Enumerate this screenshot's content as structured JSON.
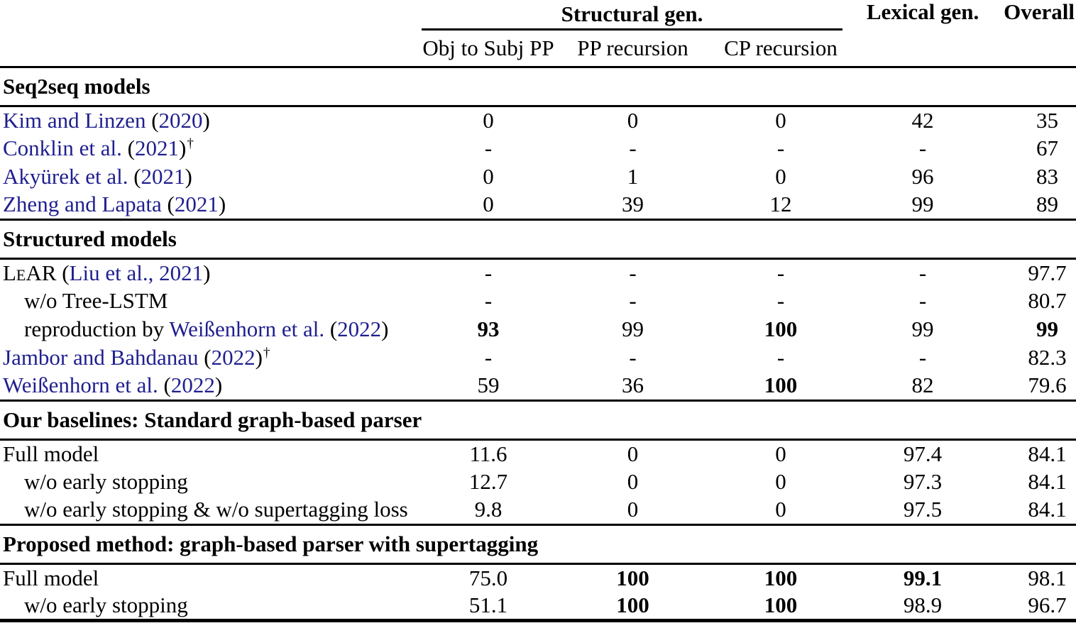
{
  "page": {
    "background": "#ffffff",
    "text_color": "#000000"
  },
  "table": {
    "link_color": "#1f1f8f",
    "header": {
      "structural_group": "Structural gen.",
      "lexical": "Lexical gen.",
      "overall": "Overall",
      "subcolumns": [
        "Obj to Subj PP",
        "PP recursion",
        "CP recursion"
      ]
    },
    "sections": [
      {
        "title": "Seq2seq models",
        "rows": [
          {
            "indent": false,
            "label": [
              {
                "text": "Kim and Linzen",
                "link": true
              },
              {
                "text": " ("
              },
              {
                "text": "2020",
                "link": true
              },
              {
                "text": ")"
              }
            ],
            "values": [
              {
                "text": "0"
              },
              {
                "text": "0"
              },
              {
                "text": "0"
              },
              {
                "text": "42"
              },
              {
                "text": "35"
              }
            ]
          },
          {
            "indent": false,
            "label": [
              {
                "text": "Conklin et al.",
                "link": true
              },
              {
                "text": " ("
              },
              {
                "text": "2021",
                "link": true
              },
              {
                "text": ")"
              },
              {
                "text": "†",
                "sup": true
              }
            ],
            "values": [
              {
                "text": "-"
              },
              {
                "text": "-"
              },
              {
                "text": "-"
              },
              {
                "text": "-"
              },
              {
                "text": "67"
              }
            ]
          },
          {
            "indent": false,
            "label": [
              {
                "text": "Akyürek et al.",
                "link": true
              },
              {
                "text": " ("
              },
              {
                "text": "2021",
                "link": true
              },
              {
                "text": ")"
              }
            ],
            "values": [
              {
                "text": "0"
              },
              {
                "text": "1"
              },
              {
                "text": "0"
              },
              {
                "text": "96"
              },
              {
                "text": "83"
              }
            ]
          },
          {
            "indent": false,
            "label": [
              {
                "text": "Zheng and Lapata",
                "link": true
              },
              {
                "text": " ("
              },
              {
                "text": "2021",
                "link": true
              },
              {
                "text": ")"
              }
            ],
            "values": [
              {
                "text": "0"
              },
              {
                "text": "39"
              },
              {
                "text": "12"
              },
              {
                "text": "99"
              },
              {
                "text": "89"
              }
            ]
          }
        ]
      },
      {
        "title": "Structured models",
        "rows": [
          {
            "indent": false,
            "label": [
              {
                "text": "LeAR",
                "smallcaps": true
              },
              {
                "text": " ("
              },
              {
                "text": "Liu et al., 2021",
                "link": true
              },
              {
                "text": ")"
              }
            ],
            "values": [
              {
                "text": "-"
              },
              {
                "text": "-"
              },
              {
                "text": "-"
              },
              {
                "text": "-"
              },
              {
                "text": "97.7"
              }
            ]
          },
          {
            "indent": true,
            "label": [
              {
                "text": "w/o Tree-LSTM"
              }
            ],
            "values": [
              {
                "text": "-"
              },
              {
                "text": "-"
              },
              {
                "text": "-"
              },
              {
                "text": "-"
              },
              {
                "text": "80.7"
              }
            ]
          },
          {
            "indent": true,
            "label": [
              {
                "text": "reproduction by "
              },
              {
                "text": "Weißenhorn et al.",
                "link": true
              },
              {
                "text": " ("
              },
              {
                "text": "2022",
                "link": true
              },
              {
                "text": ")"
              }
            ],
            "values": [
              {
                "text": "93",
                "bold": true
              },
              {
                "text": "99"
              },
              {
                "text": "100",
                "bold": true
              },
              {
                "text": "99"
              },
              {
                "text": "99",
                "bold": true
              }
            ]
          },
          {
            "indent": false,
            "label": [
              {
                "text": "Jambor and Bahdanau",
                "link": true
              },
              {
                "text": " ("
              },
              {
                "text": "2022",
                "link": true
              },
              {
                "text": ")"
              },
              {
                "text": "†",
                "sup": true
              }
            ],
            "values": [
              {
                "text": "-"
              },
              {
                "text": "-"
              },
              {
                "text": "-"
              },
              {
                "text": "-"
              },
              {
                "text": "82.3"
              }
            ]
          },
          {
            "indent": false,
            "label": [
              {
                "text": "Weißenhorn et al.",
                "link": true
              },
              {
                "text": " ("
              },
              {
                "text": "2022",
                "link": true
              },
              {
                "text": ")"
              }
            ],
            "values": [
              {
                "text": "59"
              },
              {
                "text": "36"
              },
              {
                "text": "100",
                "bold": true
              },
              {
                "text": "82"
              },
              {
                "text": "79.6"
              }
            ]
          }
        ]
      },
      {
        "title": "Our baselines: Standard graph-based parser",
        "rows": [
          {
            "indent": false,
            "label": [
              {
                "text": "Full model"
              }
            ],
            "values": [
              {
                "text": "11.6"
              },
              {
                "text": "0"
              },
              {
                "text": "0"
              },
              {
                "text": "97.4"
              },
              {
                "text": "84.1"
              }
            ]
          },
          {
            "indent": true,
            "label": [
              {
                "text": "w/o early stopping"
              }
            ],
            "values": [
              {
                "text": "12.7"
              },
              {
                "text": "0"
              },
              {
                "text": "0"
              },
              {
                "text": "97.3"
              },
              {
                "text": "84.1"
              }
            ]
          },
          {
            "indent": true,
            "label": [
              {
                "text": "w/o early stopping & w/o supertagging loss"
              }
            ],
            "values": [
              {
                "text": "9.8"
              },
              {
                "text": "0"
              },
              {
                "text": "0"
              },
              {
                "text": "97.5"
              },
              {
                "text": "84.1"
              }
            ]
          }
        ]
      },
      {
        "title": "Proposed method: graph-based parser with supertagging",
        "rows": [
          {
            "indent": false,
            "label": [
              {
                "text": "Full model"
              }
            ],
            "values": [
              {
                "text": "75.0"
              },
              {
                "text": "100",
                "bold": true
              },
              {
                "text": "100",
                "bold": true
              },
              {
                "text": "99.1",
                "bold": true
              },
              {
                "text": "98.1"
              }
            ]
          },
          {
            "indent": true,
            "label": [
              {
                "text": "w/o early stopping"
              }
            ],
            "values": [
              {
                "text": "51.1"
              },
              {
                "text": "100",
                "bold": true
              },
              {
                "text": "100",
                "bold": true
              },
              {
                "text": "98.9"
              },
              {
                "text": "96.7"
              }
            ]
          }
        ]
      }
    ]
  }
}
